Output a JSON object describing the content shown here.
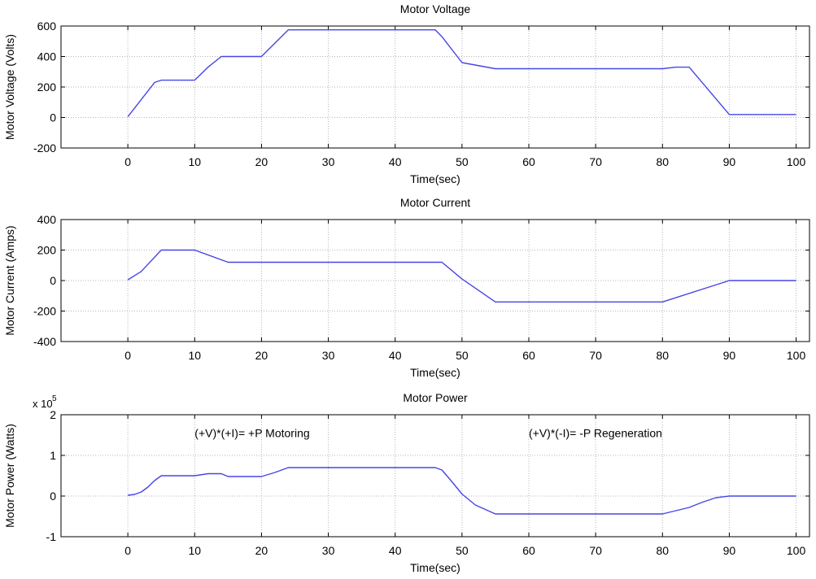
{
  "chart_data": [
    {
      "type": "line",
      "title": "Motor Voltage",
      "xlabel": "Time(sec)",
      "ylabel": "Motor Voltage (Volts)",
      "xlim": [
        -10,
        102
      ],
      "ylim": [
        -200,
        600
      ],
      "xticks": [
        0,
        10,
        20,
        30,
        40,
        50,
        60,
        70,
        80,
        90,
        100
      ],
      "yticks": [
        -200,
        0,
        200,
        400,
        600
      ],
      "grid": true,
      "exponent_label": "",
      "annotations": [],
      "series": [
        {
          "color": "#4646e6",
          "x": [
            0,
            4,
            5,
            10,
            12,
            14,
            20,
            24,
            46,
            47,
            50,
            55,
            60,
            70,
            80,
            82,
            84,
            90,
            100
          ],
          "y": [
            5,
            230,
            245,
            245,
            330,
            400,
            400,
            575,
            575,
            530,
            360,
            320,
            320,
            320,
            320,
            330,
            330,
            20,
            20
          ]
        }
      ]
    },
    {
      "type": "line",
      "title": "Motor Current",
      "xlabel": "Time(sec)",
      "ylabel": "Motor Current (Amps)",
      "xlim": [
        -10,
        102
      ],
      "ylim": [
        -400,
        400
      ],
      "xticks": [
        0,
        10,
        20,
        30,
        40,
        50,
        60,
        70,
        80,
        90,
        100
      ],
      "yticks": [
        -400,
        -200,
        0,
        200,
        400
      ],
      "grid": true,
      "exponent_label": "",
      "annotations": [],
      "series": [
        {
          "color": "#4646e6",
          "x": [
            0,
            2,
            5,
            10,
            15,
            20,
            30,
            40,
            47,
            50,
            55,
            60,
            70,
            80,
            90,
            100
          ],
          "y": [
            5,
            60,
            200,
            200,
            120,
            120,
            120,
            120,
            120,
            10,
            -140,
            -140,
            -140,
            -140,
            0,
            0
          ]
        }
      ]
    },
    {
      "type": "line",
      "title": "Motor Power",
      "xlabel": "Time(sec)",
      "ylabel": "Motor Power (Watts)",
      "xlim": [
        -10,
        102
      ],
      "ylim": [
        -1,
        2
      ],
      "xticks": [
        0,
        10,
        20,
        30,
        40,
        50,
        60,
        70,
        80,
        90,
        100
      ],
      "yticks": [
        -1,
        0,
        1,
        2
      ],
      "grid": true,
      "exponent_label": "x 10",
      "exponent_power": "5",
      "annotations": [
        {
          "text": "(+V)*(+I)= +P Motoring",
          "x": 10,
          "y": 1.45
        },
        {
          "text": "(+V)*(-I)= -P Regeneration",
          "x": 60,
          "y": 1.45
        }
      ],
      "series": [
        {
          "color": "#4646e6",
          "x": [
            0,
            1,
            2,
            3,
            4,
            5,
            10,
            12,
            14,
            15,
            20,
            22,
            24,
            30,
            40,
            46,
            47,
            48,
            50,
            52,
            55,
            60,
            70,
            80,
            84,
            86,
            88,
            90,
            100
          ],
          "y": [
            0.02,
            0.04,
            0.1,
            0.22,
            0.38,
            0.5,
            0.5,
            0.55,
            0.55,
            0.48,
            0.48,
            0.58,
            0.7,
            0.7,
            0.7,
            0.7,
            0.64,
            0.45,
            0.05,
            -0.22,
            -0.44,
            -0.44,
            -0.44,
            -0.44,
            -0.28,
            -0.15,
            -0.04,
            0,
            0
          ]
        }
      ]
    }
  ]
}
